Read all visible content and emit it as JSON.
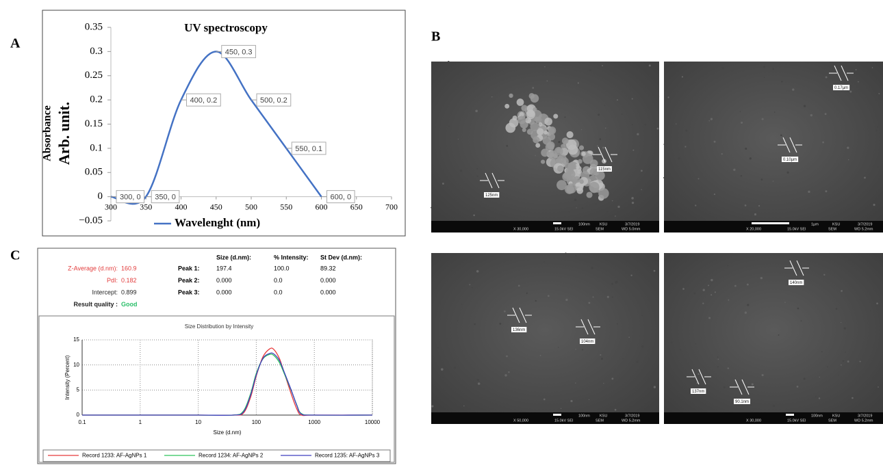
{
  "panel_labels": [
    "A",
    "B",
    "C"
  ],
  "chart_data": [
    {
      "type": "line",
      "title": "UV spectroscopy",
      "ylabel": [
        "Absorbance",
        "Arb. unit."
      ],
      "x": [
        300,
        350,
        400,
        450,
        500,
        550,
        600
      ],
      "series": [
        {
          "name": "Wavelenght (nm)",
          "color": "#4472c4",
          "values": [
            0,
            0,
            0.2,
            0.3,
            0.2,
            0.1,
            0
          ],
          "value_labels": [
            "300, 0",
            "350, 0",
            "400, 0.2",
            "450, 0.3",
            "500, 0.2",
            "550, 0.1",
            "600, 0"
          ]
        }
      ],
      "xlim": [
        300,
        700
      ],
      "xticks": [
        300,
        350,
        400,
        450,
        500,
        550,
        600,
        650,
        700
      ],
      "ylim": [
        -0.05,
        0.35
      ],
      "yticks": [
        {
          "value": -0.05,
          "label": "−0.05"
        },
        0,
        0.05,
        0.1,
        0.15,
        0.2,
        0.25,
        0.3,
        0.35
      ],
      "grid": false,
      "legend": "bottom"
    },
    {
      "type": "line",
      "title": "Size Distribution by Intensity",
      "xlabel": "Size (d.nm)",
      "ylabel": "Intensity (Percent)",
      "xscale": "log",
      "x": [
        0.1,
        1,
        10,
        40,
        60,
        80,
        100,
        130,
        170,
        200,
        250,
        300,
        400,
        500,
        600,
        1000,
        10000
      ],
      "series": [
        {
          "name": "Record 1233: AF-AgNPs 1",
          "color": "#e8393a",
          "values": [
            0,
            0,
            0,
            0,
            0.4,
            3.6,
            7.8,
            11.6,
            13.2,
            13.1,
            11.3,
            8.6,
            4.2,
            1.2,
            0,
            0,
            0
          ]
        },
        {
          "name": "Record 1234: AF-AgNPs 2",
          "color": "#2fc35a",
          "values": [
            0,
            0,
            0,
            0,
            0.8,
            4.3,
            8.3,
            11.2,
            12.1,
            11.9,
            10.5,
            8.4,
            4.9,
            2.0,
            0.3,
            0,
            0
          ]
        },
        {
          "name": "Record 1235: AF-AgNPs 3",
          "color": "#3f3fbf",
          "values": [
            0,
            0,
            0,
            0,
            0.6,
            4.0,
            8.0,
            11.3,
            12.3,
            12.2,
            10.9,
            8.7,
            5.0,
            1.9,
            0.2,
            0,
            0
          ]
        }
      ],
      "xlim": [
        0.1,
        10000
      ],
      "xticks": [
        0.1,
        1,
        10,
        100,
        1000,
        10000
      ],
      "ylim": [
        0,
        15
      ],
      "yticks": [
        0,
        5,
        10,
        15
      ],
      "grid": true,
      "legend": "bottom"
    }
  ],
  "dls_summary": [
    [
      "Z-Average (d.nm):",
      "160.9"
    ],
    [
      "PdI:",
      "0.182"
    ],
    [
      "Intercept:",
      "0.899"
    ],
    [
      "Result quality :",
      "Good"
    ]
  ],
  "dls_peaks": {
    "header": [
      "Size (d.nm):",
      "% Intensity:",
      "St Dev (d.nm):"
    ],
    "rows": [
      [
        "Peak 1:",
        "197.4",
        "100.0",
        "89.32"
      ],
      [
        "Peak 2:",
        "0.000",
        "0.0",
        "0.000"
      ],
      [
        "Peak 3:",
        "0.000",
        "0.0",
        "0.000"
      ]
    ]
  },
  "sem_images": [
    {
      "annotations": [
        "125nm",
        "115nm"
      ],
      "footer": [
        "X 30,000",
        "15.0kV SEI",
        "SEM",
        "WD 5.0mm",
        "100nm",
        "KSU",
        "3/7/2019"
      ]
    },
    {
      "annotations": [
        "0.17µm",
        "0.10µm"
      ],
      "footer": [
        "X 20,000",
        "15.0kV SEI",
        "SEM",
        "WD 5.2mm",
        "1µm",
        "KSU",
        "3/7/2019"
      ]
    },
    {
      "annotations": [
        "136nm",
        "104nm"
      ],
      "footer": [
        "X 50,000",
        "15.0kV SEI",
        "SEM",
        "WD 5.2mm",
        "100nm",
        "KSU",
        "3/7/2019"
      ]
    },
    {
      "annotations": [
        "140nm",
        "137nm",
        "90.1nm"
      ],
      "footer": [
        "X 30,000",
        "15.0kV SEI",
        "SEM",
        "WD 5.2mm",
        "100nm",
        "KSU",
        "3/7/2019"
      ]
    }
  ]
}
